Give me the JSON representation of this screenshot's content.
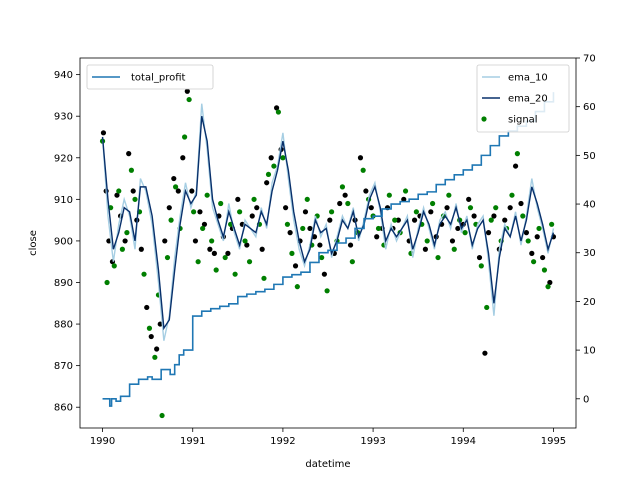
{
  "chart_data": {
    "type": "line",
    "xlabel": "datetime",
    "ylabel": "close",
    "xlim": [
      1989.75,
      1995.25
    ],
    "ylim": [
      855,
      944
    ],
    "y2lim": [
      -6,
      70
    ],
    "grid": false,
    "x_ticks": [
      {
        "value": 1990,
        "label": "1990"
      },
      {
        "value": 1991,
        "label": "1991"
      },
      {
        "value": 1992,
        "label": "1992"
      },
      {
        "value": 1993,
        "label": "1993"
      },
      {
        "value": 1994,
        "label": "1994"
      },
      {
        "value": 1995,
        "label": "1995"
      }
    ],
    "y_ticks": [
      {
        "value": 860,
        "label": "860"
      },
      {
        "value": 870,
        "label": "870"
      },
      {
        "value": 880,
        "label": "880"
      },
      {
        "value": 890,
        "label": "890"
      },
      {
        "value": 900,
        "label": "900"
      },
      {
        "value": 910,
        "label": "910"
      },
      {
        "value": 920,
        "label": "920"
      },
      {
        "value": 930,
        "label": "930"
      },
      {
        "value": 940,
        "label": "940"
      }
    ],
    "y2_ticks": [
      {
        "value": 0,
        "label": "0"
      },
      {
        "value": 10,
        "label": "10"
      },
      {
        "value": 20,
        "label": "20"
      },
      {
        "value": 30,
        "label": "30"
      },
      {
        "value": 40,
        "label": "40"
      },
      {
        "value": 50,
        "label": "50"
      },
      {
        "value": 60,
        "label": "60"
      },
      {
        "value": 70,
        "label": "70"
      }
    ],
    "legend_left": {
      "placement": "upper-left",
      "entries": [
        "total_profit"
      ]
    },
    "legend_right": {
      "placement": "upper-right",
      "entries": [
        "ema_10",
        "ema_20",
        "signal"
      ]
    },
    "colors": {
      "total_profit": "#1f77b4",
      "ema_10": "#a6cee3",
      "ema_20": "#08306b",
      "signal": "#007f00",
      "close_points": "#000000"
    },
    "series": [
      {
        "name": "ema_10",
        "axis": "left",
        "style": "line",
        "x": [
          1990.0,
          1990.06,
          1990.12,
          1990.18,
          1990.24,
          1990.3,
          1990.36,
          1990.42,
          1990.48,
          1990.55,
          1990.62,
          1990.68,
          1990.74,
          1990.8,
          1990.86,
          1990.92,
          1990.98,
          1991.04,
          1991.1,
          1991.16,
          1991.22,
          1991.28,
          1991.34,
          1991.4,
          1991.46,
          1991.52,
          1991.58,
          1991.64,
          1991.7,
          1991.76,
          1991.82,
          1991.88,
          1991.94,
          1992.0,
          1992.06,
          1992.12,
          1992.18,
          1992.24,
          1992.3,
          1992.36,
          1992.42,
          1992.48,
          1992.54,
          1992.6,
          1992.66,
          1992.72,
          1992.78,
          1992.84,
          1992.9,
          1992.96,
          1993.02,
          1993.08,
          1993.14,
          1993.2,
          1993.26,
          1993.32,
          1993.38,
          1993.44,
          1993.5,
          1993.56,
          1993.62,
          1993.68,
          1993.74,
          1993.8,
          1993.86,
          1993.92,
          1993.98,
          1994.04,
          1994.1,
          1994.16,
          1994.22,
          1994.28,
          1994.34,
          1994.4,
          1994.46,
          1994.52,
          1994.58,
          1994.64,
          1994.7,
          1994.76,
          1994.82,
          1994.88,
          1994.94,
          1995.0
        ],
        "values": [
          925,
          906,
          895,
          904,
          910,
          906,
          898,
          915,
          912,
          904,
          890,
          876,
          882,
          896,
          906,
          914,
          908,
          912,
          933,
          922,
          908,
          904,
          900,
          909,
          902,
          898,
          905,
          903,
          901,
          908,
          903,
          914,
          918,
          926,
          915,
          905,
          898,
          894,
          899,
          906,
          901,
          904,
          896,
          901,
          906,
          903,
          908,
          900,
          905,
          911,
          914,
          907,
          898,
          904,
          900,
          903,
          906,
          896,
          903,
          908,
          903,
          898,
          905,
          907,
          903,
          909,
          902,
          906,
          898,
          904,
          906,
          895,
          882,
          898,
          904,
          901,
          907,
          899,
          906,
          915,
          908,
          903,
          897,
          903
        ]
      },
      {
        "name": "ema_20",
        "axis": "left",
        "style": "line",
        "x": [
          1990.0,
          1990.06,
          1990.12,
          1990.18,
          1990.24,
          1990.3,
          1990.36,
          1990.42,
          1990.48,
          1990.55,
          1990.62,
          1990.68,
          1990.74,
          1990.8,
          1990.86,
          1990.92,
          1990.98,
          1991.04,
          1991.1,
          1991.16,
          1991.22,
          1991.28,
          1991.34,
          1991.4,
          1991.46,
          1991.52,
          1991.58,
          1991.64,
          1991.7,
          1991.76,
          1991.82,
          1991.88,
          1991.94,
          1992.0,
          1992.06,
          1992.12,
          1992.18,
          1992.24,
          1992.3,
          1992.36,
          1992.42,
          1992.48,
          1992.54,
          1992.6,
          1992.66,
          1992.72,
          1992.78,
          1992.84,
          1992.9,
          1992.96,
          1993.02,
          1993.08,
          1993.14,
          1993.2,
          1993.26,
          1993.32,
          1993.38,
          1993.44,
          1993.5,
          1993.56,
          1993.62,
          1993.68,
          1993.74,
          1993.8,
          1993.86,
          1993.92,
          1993.98,
          1994.04,
          1994.1,
          1994.16,
          1994.22,
          1994.28,
          1994.34,
          1994.4,
          1994.46,
          1994.52,
          1994.58,
          1994.64,
          1994.7,
          1994.76,
          1994.82,
          1994.88,
          1994.94,
          1995.0
        ],
        "values": [
          925,
          910,
          898,
          902,
          908,
          907,
          900,
          913,
          913,
          906,
          893,
          879,
          881,
          893,
          904,
          912,
          909,
          911,
          930,
          924,
          910,
          905,
          901,
          907,
          903,
          899,
          904,
          903,
          902,
          907,
          904,
          912,
          917,
          924,
          917,
          907,
          900,
          895,
          898,
          905,
          902,
          903,
          897,
          900,
          905,
          903,
          907,
          901,
          904,
          910,
          913,
          908,
          900,
          903,
          901,
          903,
          905,
          898,
          902,
          907,
          904,
          899,
          904,
          906,
          904,
          908,
          903,
          905,
          899,
          903,
          905,
          897,
          885,
          896,
          903,
          901,
          906,
          900,
          905,
          913,
          909,
          904,
          898,
          902
        ]
      },
      {
        "name": "total_profit",
        "axis": "right",
        "style": "step",
        "x": [
          1990.0,
          1990.05,
          1990.08,
          1990.1,
          1990.15,
          1990.2,
          1990.3,
          1990.4,
          1990.5,
          1990.55,
          1990.6,
          1990.65,
          1990.7,
          1990.75,
          1990.8,
          1990.85,
          1990.9,
          1991.0,
          1991.1,
          1991.2,
          1991.3,
          1991.4,
          1991.5,
          1991.6,
          1991.7,
          1991.8,
          1991.9,
          1992.0,
          1992.1,
          1992.2,
          1992.3,
          1992.4,
          1992.5,
          1992.6,
          1992.7,
          1992.8,
          1992.9,
          1993.0,
          1993.1,
          1993.2,
          1993.3,
          1993.4,
          1993.5,
          1993.6,
          1993.7,
          1993.8,
          1993.9,
          1994.0,
          1994.1,
          1994.2,
          1994.3,
          1994.4,
          1994.5,
          1994.6,
          1994.7,
          1994.8,
          1994.9,
          1995.0
        ],
        "values": [
          0,
          0,
          -1.5,
          0,
          -0.5,
          0.5,
          3,
          4,
          4.5,
          4,
          4,
          6,
          6,
          5,
          7,
          9,
          10,
          17,
          18,
          18.5,
          19,
          19.5,
          21,
          21.5,
          22,
          22.5,
          23.5,
          25,
          25.5,
          26,
          28,
          30,
          30.5,
          32,
          33,
          35,
          37,
          37.5,
          39,
          40,
          40.5,
          41,
          42,
          42.5,
          44,
          45,
          46,
          47,
          48,
          50,
          52,
          54,
          55,
          56,
          57,
          59,
          61,
          63
        ]
      }
    ],
    "scatter": [
      {
        "name": "signal",
        "axis": "left",
        "x": [
          1990.0,
          1990.05,
          1990.09,
          1990.13,
          1990.18,
          1990.22,
          1990.27,
          1990.32,
          1990.36,
          1990.41,
          1990.46,
          1990.52,
          1990.58,
          1990.62,
          1990.66,
          1990.72,
          1990.76,
          1990.81,
          1990.86,
          1990.91,
          1990.96,
          1991.01,
          1991.06,
          1991.11,
          1991.16,
          1991.21,
          1991.26,
          1991.31,
          1991.36,
          1991.42,
          1991.47,
          1991.52,
          1991.58,
          1991.63,
          1991.68,
          1991.74,
          1991.79,
          1991.84,
          1991.9,
          1991.95,
          1992.0,
          1992.05,
          1992.1,
          1992.16,
          1992.22,
          1992.27,
          1992.32,
          1992.38,
          1992.43,
          1992.49,
          1992.54,
          1992.6,
          1992.66,
          1992.72,
          1992.77,
          1992.83,
          1992.89,
          1992.95,
          1993.0,
          1993.06,
          1993.12,
          1993.18,
          1993.24,
          1993.3,
          1993.36,
          1993.42,
          1993.48,
          1993.54,
          1993.6,
          1993.66,
          1993.72,
          1993.78,
          1993.84,
          1993.9,
          1993.96,
          1994.02,
          1994.08,
          1994.14,
          1994.2,
          1994.26,
          1994.31,
          1994.36,
          1994.42,
          1994.48,
          1994.54,
          1994.6,
          1994.66,
          1994.72,
          1994.78,
          1994.84,
          1994.9,
          1994.94,
          1994.98
        ],
        "values": [
          924,
          890,
          908,
          894,
          912,
          898,
          902,
          917,
          910,
          907,
          892,
          879,
          872,
          887,
          858,
          896,
          905,
          913,
          903,
          925,
          934,
          907,
          895,
          903,
          911,
          900,
          893,
          909,
          896,
          904,
          892,
          907,
          900,
          895,
          910,
          904,
          891,
          916,
          918,
          931,
          920,
          904,
          897,
          889,
          903,
          910,
          899,
          906,
          896,
          888,
          907,
          900,
          913,
          909,
          895,
          902,
          917,
          910,
          906,
          903,
          899,
          911,
          905,
          902,
          912,
          897,
          907,
          904,
          900,
          909,
          896,
          906,
          911,
          898,
          905,
          902,
          908,
          904,
          894,
          884,
          905,
          908,
          900,
          903,
          911,
          921,
          906,
          900,
          895,
          903,
          893,
          889,
          904
        ]
      },
      {
        "name": "close",
        "axis": "left",
        "x": [
          1990.01,
          1990.04,
          1990.07,
          1990.11,
          1990.16,
          1990.2,
          1990.25,
          1990.29,
          1990.34,
          1990.38,
          1990.43,
          1990.49,
          1990.54,
          1990.6,
          1990.64,
          1990.69,
          1990.74,
          1990.79,
          1990.84,
          1990.89,
          1990.94,
          1990.99,
          1991.03,
          1991.08,
          1991.13,
          1991.19,
          1991.24,
          1991.29,
          1991.34,
          1991.39,
          1991.44,
          1991.5,
          1991.55,
          1991.6,
          1991.66,
          1991.71,
          1991.77,
          1991.82,
          1991.87,
          1991.93,
          1991.98,
          1992.03,
          1992.08,
          1992.14,
          1992.19,
          1992.25,
          1992.3,
          1992.35,
          1992.41,
          1992.46,
          1992.52,
          1992.57,
          1992.63,
          1992.69,
          1992.75,
          1992.8,
          1992.86,
          1992.92,
          1992.98,
          1993.04,
          1993.1,
          1993.16,
          1993.22,
          1993.28,
          1993.34,
          1993.4,
          1993.46,
          1993.52,
          1993.58,
          1993.64,
          1993.7,
          1993.76,
          1993.82,
          1993.88,
          1993.94,
          1994.0,
          1994.06,
          1994.12,
          1994.18,
          1994.24,
          1994.28,
          1994.34,
          1994.4,
          1994.46,
          1994.52,
          1994.58,
          1994.64,
          1994.7,
          1994.76,
          1994.82,
          1994.88,
          1994.96,
          1995.0
        ],
        "values": [
          926,
          912,
          900,
          895,
          911,
          906,
          900,
          921,
          912,
          905,
          898,
          884,
          877,
          874,
          880,
          900,
          908,
          915,
          912,
          920,
          936,
          912,
          900,
          907,
          904,
          898,
          897,
          906,
          901,
          897,
          903,
          910,
          904,
          899,
          906,
          908,
          898,
          914,
          920,
          932,
          922,
          908,
          902,
          894,
          900,
          907,
          903,
          901,
          899,
          892,
          905,
          897,
          909,
          911,
          899,
          905,
          920,
          912,
          908,
          901,
          903,
          908,
          903,
          905,
          910,
          900,
          905,
          906,
          898,
          907,
          901,
          904,
          908,
          900,
          903,
          904,
          910,
          906,
          896,
          873,
          902,
          906,
          898,
          905,
          908,
          918,
          909,
          902,
          897,
          901,
          896,
          890,
          901
        ]
      }
    ]
  }
}
